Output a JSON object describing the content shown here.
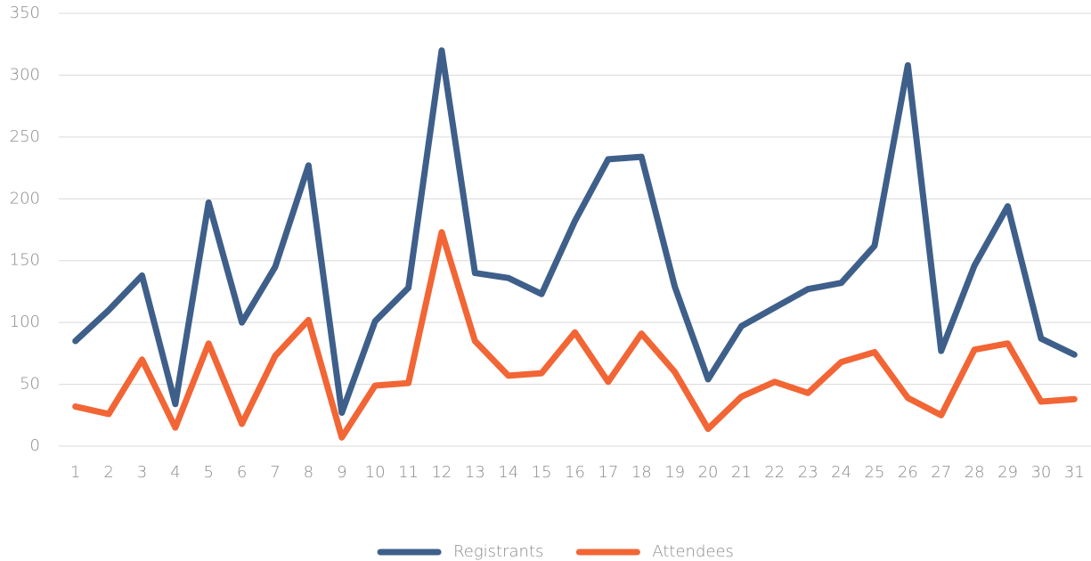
{
  "chart_data": {
    "type": "line",
    "categories": [
      "1",
      "2",
      "3",
      "4",
      "5",
      "6",
      "7",
      "8",
      "9",
      "10",
      "11",
      "12",
      "13",
      "14",
      "15",
      "16",
      "17",
      "18",
      "19",
      "20",
      "21",
      "22",
      "23",
      "24",
      "25",
      "26",
      "27",
      "28",
      "29",
      "30",
      "31"
    ],
    "series": [
      {
        "name": "Registrants",
        "color": "#3e5f8a",
        "values": [
          85,
          110,
          138,
          34,
          197,
          100,
          145,
          227,
          27,
          101,
          128,
          320,
          140,
          136,
          123,
          182,
          232,
          234,
          129,
          54,
          97,
          112,
          127,
          132,
          162,
          308,
          77,
          146,
          194,
          87,
          74
        ]
      },
      {
        "name": "Attendees",
        "color": "#f26535",
        "values": [
          32,
          26,
          70,
          15,
          83,
          18,
          73,
          102,
          7,
          49,
          51,
          173,
          85,
          57,
          59,
          92,
          52,
          91,
          60,
          14,
          40,
          52,
          43,
          68,
          76,
          39,
          25,
          78,
          83,
          36,
          38
        ]
      }
    ],
    "ylim": [
      0,
      350
    ],
    "yticks": [
      0,
      50,
      100,
      150,
      200,
      250,
      300,
      350
    ],
    "grid": true,
    "legend": "bottom"
  }
}
